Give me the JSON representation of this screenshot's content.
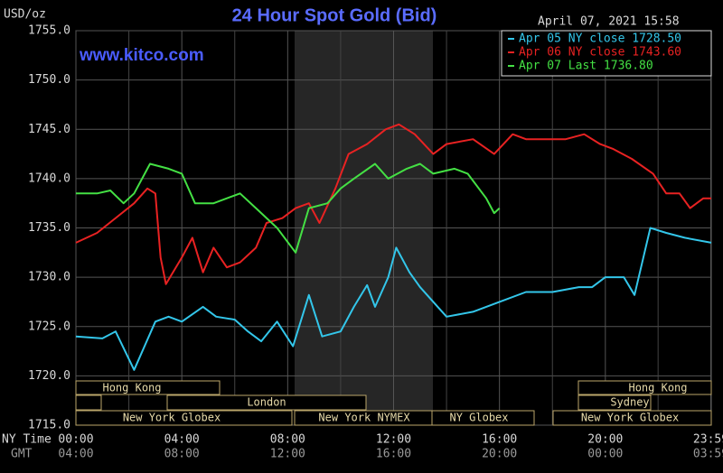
{
  "chart_data": {
    "type": "line",
    "title": "24 Hour Spot Gold (Bid)",
    "unit_label": "USD/oz",
    "timestamp": "April 07, 2021 15:58",
    "watermark": "www.kitco.com",
    "x_axis_label": "NY Time",
    "x2_axis_label": "GMT",
    "xlim": [
      0,
      24
    ],
    "xticks": [
      {
        "value": 0,
        "label": "00:00"
      },
      {
        "value": 4,
        "label": "04:00"
      },
      {
        "value": 8,
        "label": "08:00"
      },
      {
        "value": 12,
        "label": "12:00"
      },
      {
        "value": 16,
        "label": "16:00"
      },
      {
        "value": 20,
        "label": "20:00"
      },
      {
        "value": 23.983,
        "label": "23:59"
      }
    ],
    "x2ticks": [
      {
        "value": 0,
        "label": "04:00"
      },
      {
        "value": 4,
        "label": "08:00"
      },
      {
        "value": 8,
        "label": "12:00"
      },
      {
        "value": 12,
        "label": "16:00"
      },
      {
        "value": 16,
        "label": "20:00"
      },
      {
        "value": 20,
        "label": "00:00"
      },
      {
        "value": 23.983,
        "label": "03:59"
      }
    ],
    "ylim": [
      1715,
      1755
    ],
    "yticks": [
      {
        "value": 1715,
        "label": "1715.0"
      },
      {
        "value": 1720,
        "label": "1720.0"
      },
      {
        "value": 1725,
        "label": "1725.0"
      },
      {
        "value": 1730,
        "label": "1730.0"
      },
      {
        "value": 1735,
        "label": "1735.0"
      },
      {
        "value": 1740,
        "label": "1740.0"
      },
      {
        "value": 1745,
        "label": "1745.0"
      },
      {
        "value": 1750,
        "label": "1750.0"
      },
      {
        "value": 1755,
        "label": "1755.0"
      }
    ],
    "grid": true,
    "legend": "top-right",
    "sessions": [
      "Hong Kong",
      "London",
      "New York Globex",
      "New York NYMEX",
      "NY Globex",
      "Hong Kong",
      "Sydney",
      "New York Globex"
    ],
    "series": [
      {
        "name": "Apr 05 NY close 1728.50",
        "color": "#33c6ea",
        "x": [
          0,
          1,
          1.5,
          2.2,
          3,
          3.5,
          4,
          4.8,
          5.3,
          6,
          6.5,
          7,
          7.6,
          8.2,
          8.8,
          9.3,
          10,
          10.5,
          11,
          11.3,
          11.8,
          12.1,
          12.6,
          13,
          13.5,
          14,
          15,
          16,
          17,
          18,
          19,
          19.5,
          20,
          20.7,
          21.1,
          21.7,
          22.3,
          23,
          24
        ],
        "values": [
          1724,
          1723.8,
          1724.5,
          1720.6,
          1725.5,
          1726,
          1725.5,
          1727,
          1726,
          1725.7,
          1724.5,
          1723.5,
          1725.5,
          1723,
          1728.2,
          1724,
          1724.5,
          1727,
          1729.2,
          1727,
          1730,
          1733,
          1730.5,
          1729,
          1727.5,
          1726,
          1726.5,
          1727.5,
          1728.5,
          1728.5,
          1729,
          1729,
          1730,
          1730,
          1728.2,
          1735,
          1734.5,
          1734,
          1733.5
        ]
      },
      {
        "name": "Apr 06 NY close 1743.60",
        "color": "#e82222",
        "x": [
          0,
          0.8,
          1.5,
          2.2,
          2.7,
          3,
          3.2,
          3.4,
          4,
          4.4,
          4.8,
          5.2,
          5.7,
          6.2,
          6.8,
          7.2,
          7.8,
          8.3,
          8.8,
          9.2,
          9.8,
          10.3,
          11,
          11.7,
          12.2,
          12.8,
          13.5,
          14,
          15,
          15.8,
          16.5,
          17,
          18.5,
          19.2,
          19.8,
          20.3,
          21,
          21.8,
          22.3,
          22.8,
          23.2,
          23.7,
          24
        ],
        "values": [
          1733.5,
          1734.5,
          1736,
          1737.5,
          1739,
          1738.5,
          1732,
          1729.3,
          1732,
          1734,
          1730.5,
          1733,
          1731,
          1731.5,
          1733,
          1735.5,
          1736,
          1737,
          1737.5,
          1735.5,
          1739,
          1742.5,
          1743.5,
          1745,
          1745.5,
          1744.5,
          1742.5,
          1743.5,
          1744,
          1742.5,
          1744.5,
          1744,
          1744,
          1744.5,
          1743.5,
          1743,
          1742,
          1740.5,
          1738.5,
          1738.5,
          1737,
          1738,
          1738
        ]
      },
      {
        "name": "Apr 07 Last 1736.80",
        "color": "#44e044",
        "x": [
          0,
          0.8,
          1.3,
          1.8,
          2.2,
          2.8,
          3.5,
          4,
          4.5,
          5.2,
          6.2,
          6.8,
          7.6,
          8.3,
          8.8,
          9.5,
          10,
          10.5,
          11.3,
          11.8,
          12.5,
          13,
          13.5,
          14.3,
          14.8,
          15.5,
          15.8,
          16
        ],
        "values": [
          1738.5,
          1738.5,
          1738.8,
          1737.5,
          1738.5,
          1741.5,
          1741,
          1740.5,
          1737.5,
          1737.5,
          1738.5,
          1737,
          1735,
          1732.5,
          1737,
          1737.5,
          1739,
          1740,
          1741.5,
          1740,
          1741,
          1741.5,
          1740.5,
          1741,
          1740.5,
          1738,
          1736.5,
          1737
        ]
      }
    ]
  }
}
